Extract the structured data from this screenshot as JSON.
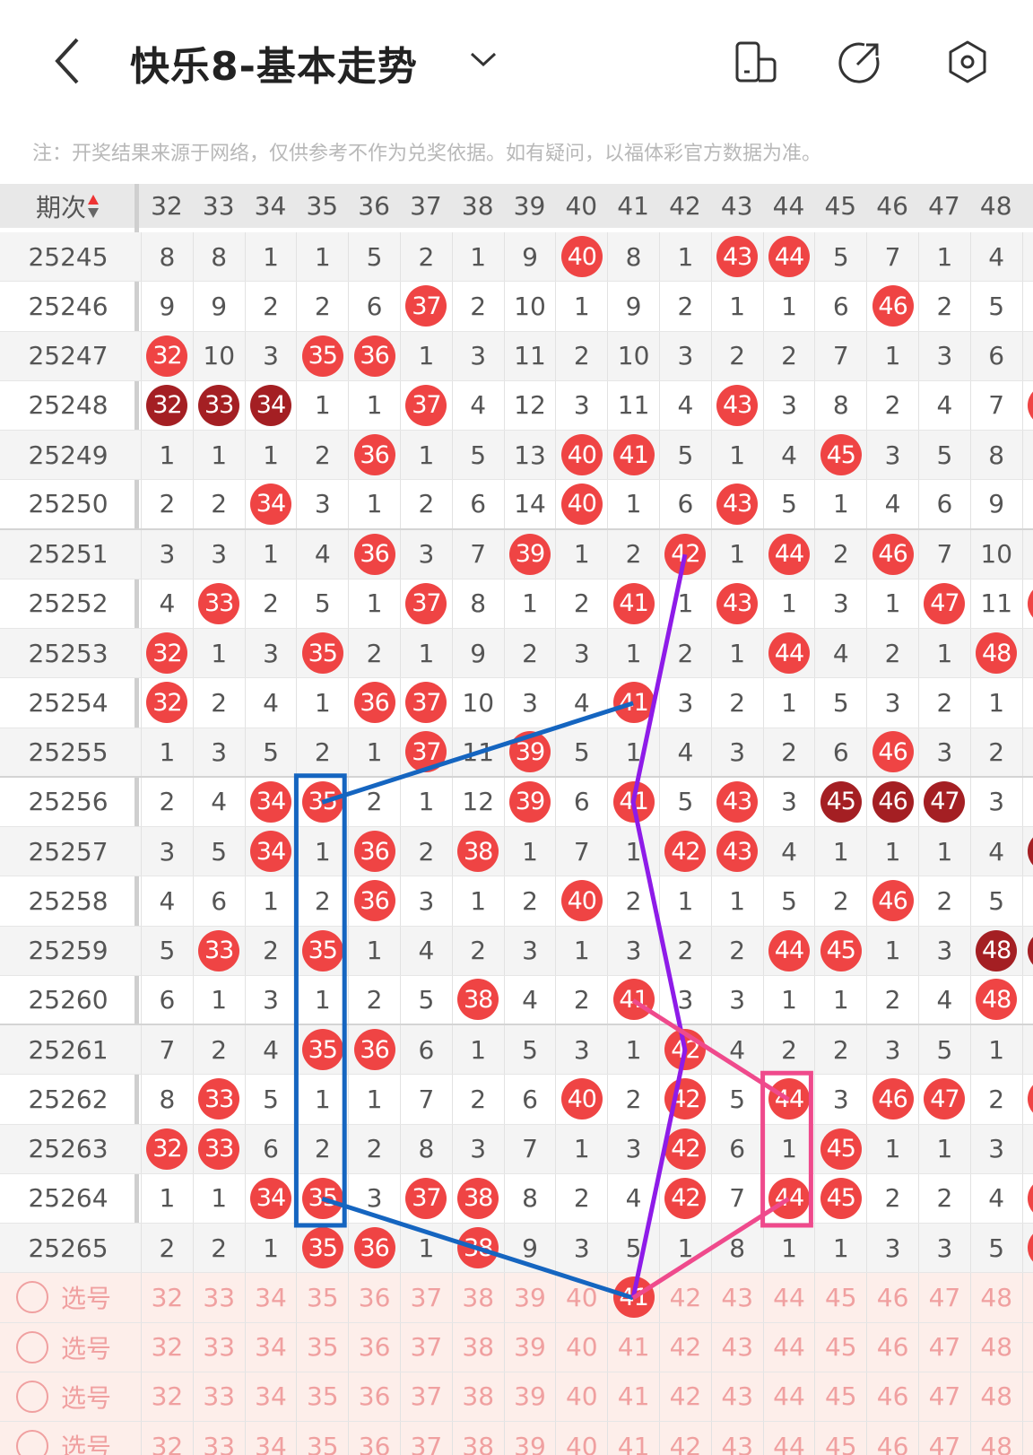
{
  "header": {
    "title": "快乐8-基本走势",
    "icons": [
      "back-icon",
      "chevron-down-icon",
      "phone-layout-icon",
      "share-icon",
      "settings-icon"
    ]
  },
  "note": "注：开奖结果来源于网络，仅供参考不作为兑奖依据。如有疑问，以福体彩官方数据为准。",
  "table": {
    "period_label": "期次",
    "columns": [
      "32",
      "33",
      "34",
      "35",
      "36",
      "37",
      "38",
      "39",
      "40",
      "41",
      "42",
      "43",
      "44",
      "45",
      "46",
      "47",
      "48"
    ],
    "colors": {
      "hit": "#ef4444",
      "hit_consecutive": "#a41f23",
      "select_text": "#f0a0a0",
      "select_bg": "#fdeeea"
    },
    "rows": [
      {
        "period": "25245",
        "cells": [
          8,
          8,
          1,
          1,
          5,
          2,
          1,
          9,
          40,
          8,
          1,
          43,
          44,
          5,
          7,
          1,
          4
        ],
        "hits": [
          40,
          43,
          44
        ],
        "dark": [],
        "next_col": ""
      },
      {
        "period": "25246",
        "cells": [
          9,
          9,
          2,
          2,
          6,
          37,
          2,
          10,
          1,
          9,
          2,
          1,
          1,
          6,
          46,
          2,
          5
        ],
        "hits": [
          37,
          46
        ],
        "dark": [],
        "next_col": ""
      },
      {
        "period": "25247",
        "cells": [
          32,
          10,
          3,
          35,
          36,
          1,
          3,
          11,
          2,
          10,
          3,
          2,
          2,
          7,
          1,
          3,
          6
        ],
        "hits": [
          32,
          35,
          36
        ],
        "dark": [],
        "next_col": ""
      },
      {
        "period": "25248",
        "cells": [
          32,
          33,
          34,
          1,
          1,
          37,
          4,
          12,
          3,
          11,
          4,
          43,
          3,
          8,
          2,
          4,
          7
        ],
        "hits": [
          32,
          33,
          34,
          37,
          43
        ],
        "dark": [
          32,
          33,
          34
        ],
        "next_col": "hit"
      },
      {
        "period": "25249",
        "cells": [
          1,
          1,
          1,
          2,
          36,
          1,
          5,
          13,
          40,
          41,
          5,
          1,
          4,
          45,
          3,
          5,
          8
        ],
        "hits": [
          36,
          40,
          41,
          45
        ],
        "dark": [],
        "next_col": ""
      },
      {
        "period": "25250",
        "cells": [
          2,
          2,
          34,
          3,
          1,
          2,
          6,
          14,
          40,
          1,
          6,
          43,
          5,
          1,
          4,
          6,
          9
        ],
        "hits": [
          34,
          40,
          43
        ],
        "dark": [],
        "next_col": ""
      },
      {
        "period": "25251",
        "cells": [
          3,
          3,
          1,
          4,
          36,
          3,
          7,
          39,
          1,
          2,
          42,
          1,
          44,
          2,
          46,
          7,
          10
        ],
        "hits": [
          36,
          39,
          42,
          44,
          46
        ],
        "dark": [],
        "next_col": ""
      },
      {
        "period": "25252",
        "cells": [
          4,
          33,
          2,
          5,
          1,
          37,
          8,
          1,
          2,
          41,
          1,
          43,
          1,
          3,
          1,
          47,
          11
        ],
        "hits": [
          33,
          37,
          41,
          43,
          47
        ],
        "dark": [],
        "next_col": "hit"
      },
      {
        "period": "25253",
        "cells": [
          32,
          1,
          3,
          35,
          2,
          1,
          9,
          2,
          3,
          1,
          2,
          1,
          44,
          4,
          2,
          1,
          48
        ],
        "hits": [
          32,
          35,
          44,
          48
        ],
        "dark": [],
        "next_col": ""
      },
      {
        "period": "25254",
        "cells": [
          32,
          2,
          4,
          1,
          36,
          37,
          10,
          3,
          4,
          41,
          3,
          2,
          1,
          5,
          3,
          2,
          1
        ],
        "hits": [
          32,
          36,
          37,
          41
        ],
        "dark": [],
        "next_col": ""
      },
      {
        "period": "25255",
        "cells": [
          1,
          3,
          5,
          2,
          1,
          37,
          11,
          39,
          5,
          1,
          4,
          3,
          2,
          6,
          46,
          3,
          2
        ],
        "hits": [
          37,
          39,
          46
        ],
        "dark": [],
        "next_col": ""
      },
      {
        "period": "25256",
        "cells": [
          2,
          4,
          34,
          35,
          2,
          1,
          12,
          39,
          6,
          41,
          5,
          43,
          3,
          45,
          46,
          47,
          3
        ],
        "hits": [
          34,
          35,
          39,
          41,
          43,
          45,
          46,
          47
        ],
        "dark": [
          45,
          46,
          47
        ],
        "next_col": ""
      },
      {
        "period": "25257",
        "cells": [
          3,
          5,
          34,
          1,
          36,
          2,
          38,
          1,
          7,
          1,
          42,
          43,
          4,
          1,
          1,
          1,
          4
        ],
        "hits": [
          34,
          36,
          38,
          42,
          43
        ],
        "dark": [],
        "next_col": "dark"
      },
      {
        "period": "25258",
        "cells": [
          4,
          6,
          1,
          2,
          36,
          3,
          1,
          2,
          40,
          2,
          1,
          1,
          5,
          2,
          46,
          2,
          5
        ],
        "hits": [
          36,
          40,
          46
        ],
        "dark": [],
        "next_col": ""
      },
      {
        "period": "25259",
        "cells": [
          5,
          33,
          2,
          35,
          1,
          4,
          2,
          3,
          1,
          3,
          2,
          2,
          44,
          45,
          1,
          3,
          48
        ],
        "hits": [
          33,
          35,
          44,
          45,
          48
        ],
        "dark": [
          48
        ],
        "next_col": "dark"
      },
      {
        "period": "25260",
        "cells": [
          6,
          1,
          3,
          1,
          2,
          5,
          38,
          4,
          2,
          41,
          3,
          3,
          1,
          1,
          2,
          4,
          48
        ],
        "hits": [
          38,
          41,
          48
        ],
        "dark": [],
        "next_col": ""
      },
      {
        "period": "25261",
        "cells": [
          7,
          2,
          4,
          35,
          36,
          6,
          1,
          5,
          3,
          1,
          42,
          4,
          2,
          2,
          3,
          5,
          1
        ],
        "hits": [
          35,
          36,
          42
        ],
        "dark": [],
        "next_col": ""
      },
      {
        "period": "25262",
        "cells": [
          8,
          33,
          5,
          1,
          1,
          7,
          2,
          6,
          40,
          2,
          42,
          5,
          44,
          3,
          46,
          47,
          2
        ],
        "hits": [
          33,
          40,
          42,
          44,
          46,
          47
        ],
        "dark": [],
        "next_col": "hit"
      },
      {
        "period": "25263",
        "cells": [
          32,
          33,
          6,
          2,
          2,
          8,
          3,
          7,
          1,
          3,
          42,
          6,
          1,
          45,
          1,
          1,
          3
        ],
        "hits": [
          32,
          33,
          42,
          45
        ],
        "dark": [],
        "next_col": ""
      },
      {
        "period": "25264",
        "cells": [
          1,
          1,
          34,
          35,
          3,
          37,
          38,
          8,
          2,
          4,
          42,
          7,
          44,
          45,
          2,
          2,
          4
        ],
        "hits": [
          34,
          35,
          37,
          38,
          42,
          44,
          45
        ],
        "dark": [],
        "next_col": "hit"
      },
      {
        "period": "25265",
        "cells": [
          2,
          2,
          1,
          35,
          36,
          1,
          38,
          9,
          3,
          5,
          1,
          8,
          1,
          1,
          3,
          3,
          5
        ],
        "hits": [
          35,
          36,
          38
        ],
        "dark": [],
        "next_col": "hit"
      }
    ],
    "select_rows": [
      {
        "label": "选号",
        "selected": [
          41
        ]
      },
      {
        "label": "选号",
        "selected": []
      },
      {
        "label": "选号",
        "selected": []
      },
      {
        "label": "选号",
        "selected": []
      }
    ]
  },
  "annotations": {
    "colors": {
      "blue": "#1565c0",
      "purple": "#8e1be8",
      "pink": "#ef4a8c"
    }
  }
}
